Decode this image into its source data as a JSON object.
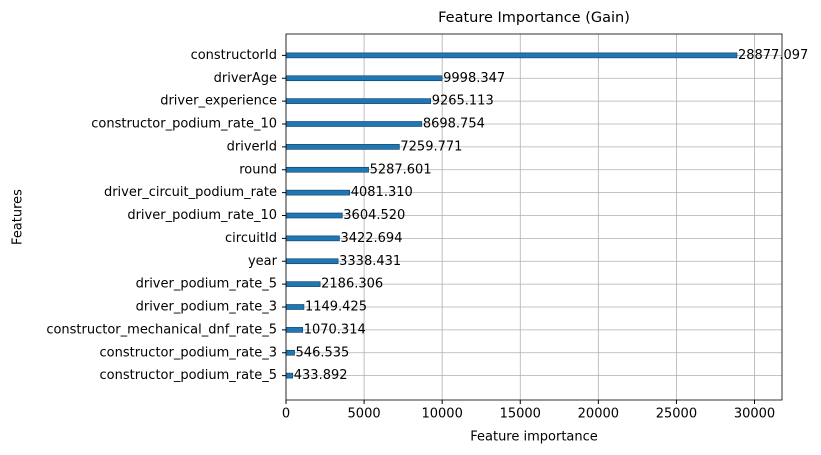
{
  "chart_data": {
    "type": "barh",
    "title": "Feature Importance (Gain)",
    "x_label": "Feature importance",
    "y_label": "Features",
    "categories": [
      "constructorId",
      "driverAge",
      "driver_experience",
      "constructor_podium_rate_10",
      "driverId",
      "round",
      "driver_circuit_podium_rate",
      "driver_podium_rate_10",
      "circuitId",
      "year",
      "driver_podium_rate_5",
      "driver_podium_rate_3",
      "constructor_mechanical_dnf_rate_5",
      "constructor_podium_rate_3",
      "constructor_podium_rate_5"
    ],
    "values": [
      28877.097,
      9998.347,
      9265.113,
      8698.754,
      7259.771,
      5287.601,
      4081.31,
      3604.52,
      3422.694,
      3338.431,
      2186.306,
      1149.425,
      1070.314,
      546.535,
      433.892
    ],
    "value_labels": [
      "28877.097",
      "9998.347",
      "9265.113",
      "8698.754",
      "7259.771",
      "5287.601",
      "4081.310",
      "3604.520",
      "3422.694",
      "3338.431",
      "2186.306",
      "1149.425",
      "1070.314",
      "546.535",
      "433.892"
    ],
    "color": "#1f77b4",
    "xlim": [
      0,
      31760
    ],
    "xticks": [
      0,
      5000,
      10000,
      15000,
      20000,
      25000,
      30000
    ],
    "grid": true
  }
}
